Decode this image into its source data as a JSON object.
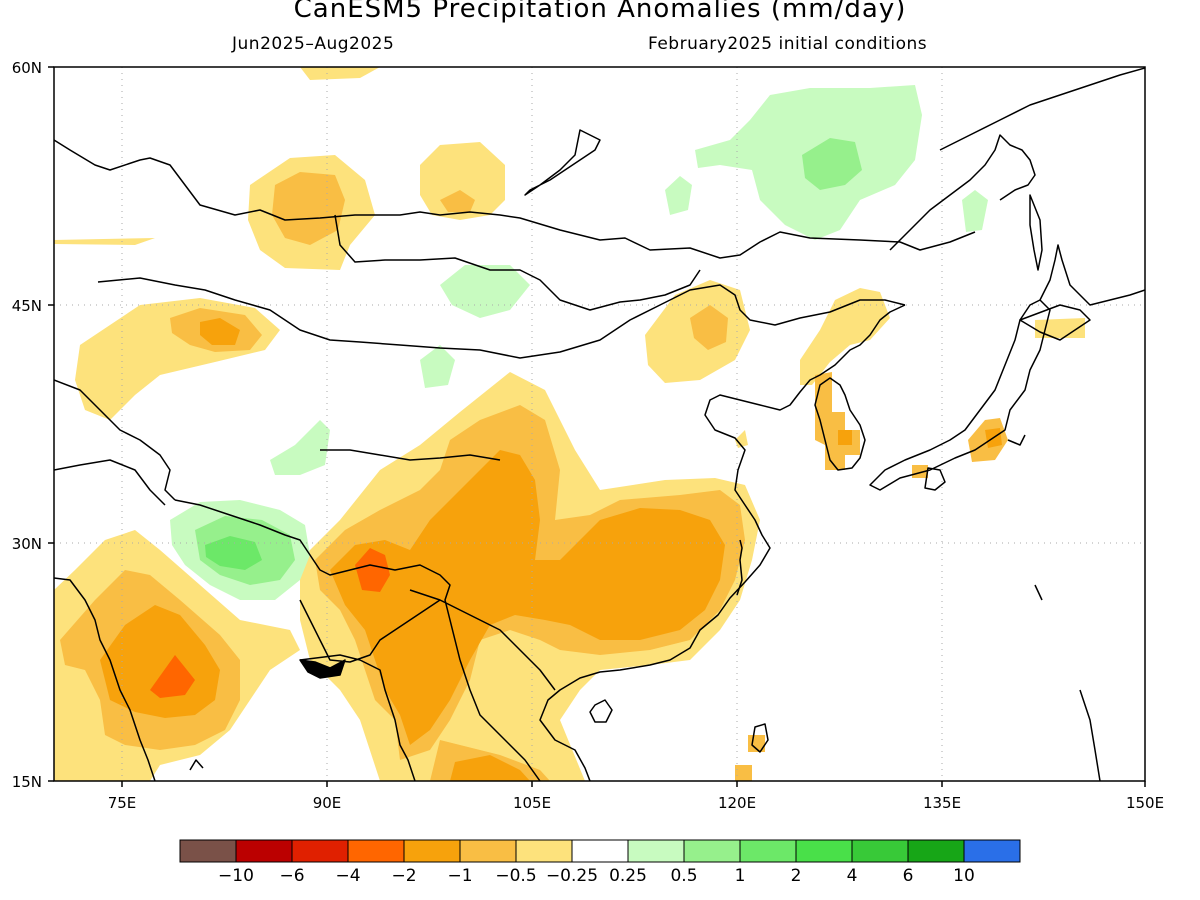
{
  "header": {
    "title": "CanESM5 Precipitation Anomalies (mm/day)",
    "period": "Jun2025–Aug2025",
    "init": "February2025 initial conditions"
  },
  "map": {
    "region": "East and South Asia",
    "lon_range": [
      70,
      150
    ],
    "lat_range": [
      15,
      60
    ],
    "x_ticks": [
      "75E",
      "90E",
      "105E",
      "120E",
      "135E",
      "150E"
    ],
    "y_ticks": [
      "60N",
      "45N",
      "30N",
      "15N"
    ],
    "gridlines": true,
    "land_outline_color": "#000000"
  },
  "colorbar": {
    "colors": [
      "#7a5148",
      "#bb0000",
      "#e02000",
      "#ff6600",
      "#f7a20c",
      "#f9be44",
      "#fde27c",
      "#ffffff",
      "#c8fbc0",
      "#96f08c",
      "#6ce868",
      "#49e049",
      "#38c938",
      "#17a617",
      "#2a6fe8"
    ],
    "labels": [
      "−10",
      "−6",
      "−4",
      "−2",
      "−1",
      "−0.5",
      "−0.25",
      "0.25",
      "0.5",
      "1",
      "2",
      "4",
      "6",
      "10"
    ]
  }
}
